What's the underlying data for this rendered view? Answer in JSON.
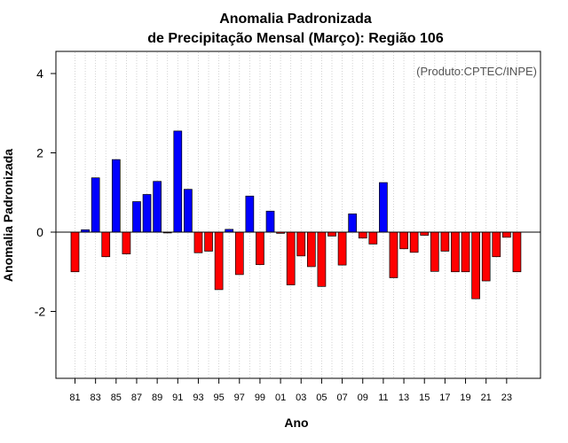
{
  "chart_data": {
    "type": "bar",
    "title": "Anomalia Padronizada",
    "subtitle": "de Precipitação Mensal (Março): Região 106",
    "annotation": "(Produto:CPTEC/INPE)",
    "xlabel": "Ano",
    "ylabel": "Anomalia Padronizada",
    "ylim": [
      -3.7,
      4.6
    ],
    "yticks": [
      -2,
      0,
      2,
      4
    ],
    "grid": "vertical dotted",
    "colors": {
      "positive": "#0000ff",
      "negative": "#ff0000",
      "border": "#000000"
    },
    "x_tick_labels": [
      "81",
      "83",
      "85",
      "87",
      "89",
      "91",
      "93",
      "95",
      "97",
      "99",
      "01",
      "03",
      "05",
      "07",
      "09",
      "11",
      "13",
      "15",
      "17",
      "19",
      "21",
      "23"
    ],
    "categories": [
      1981,
      1982,
      1983,
      1984,
      1985,
      1986,
      1987,
      1988,
      1989,
      1990,
      1991,
      1992,
      1993,
      1994,
      1995,
      1996,
      1997,
      1998,
      1999,
      2000,
      2001,
      2002,
      2003,
      2004,
      2005,
      2006,
      2007,
      2008,
      2009,
      2010,
      2011,
      2012,
      2013,
      2014,
      2015,
      2016,
      2017,
      2018,
      2019,
      2020,
      2021,
      2022,
      2023,
      2024
    ],
    "values": [
      -1.0,
      0.06,
      1.37,
      -0.62,
      1.83,
      -0.55,
      0.77,
      0.95,
      1.28,
      -0.02,
      2.55,
      1.08,
      -0.52,
      -0.48,
      -1.45,
      0.07,
      -1.07,
      0.91,
      -0.82,
      0.53,
      -0.03,
      -1.33,
      -0.6,
      -0.87,
      -1.37,
      -0.1,
      -0.83,
      0.46,
      -0.15,
      -0.3,
      1.25,
      -1.15,
      -0.42,
      -0.51,
      -0.08,
      -0.99,
      -0.48,
      -1.0,
      -1.0,
      -1.68,
      -1.23,
      -0.62,
      -0.13,
      -1.0
    ]
  }
}
